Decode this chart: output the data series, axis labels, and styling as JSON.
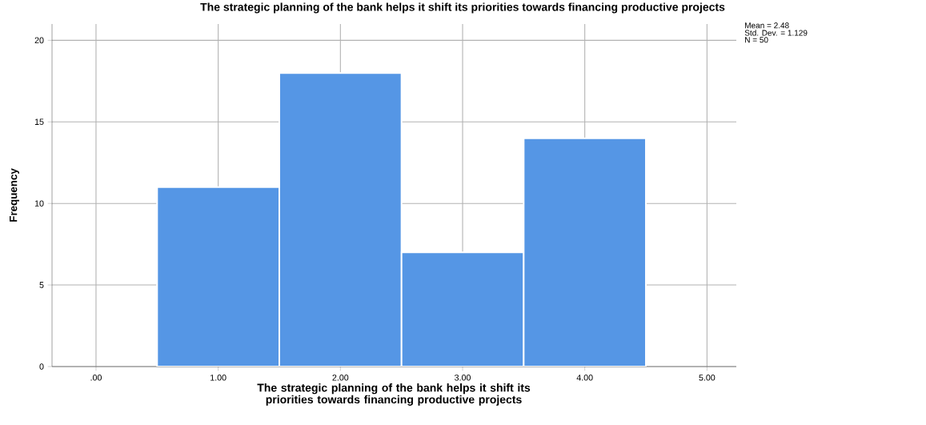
{
  "chart_data": {
    "type": "histogram",
    "title": "The strategic planning of the bank helps it shift its priorities towards financing productive projects",
    "xlabel": "The strategic planning of the bank helps it shift its priorities towards financing productive projects",
    "ylabel": "Frequency",
    "annotations": [
      "Mean = 2.48",
      "Std. Dev. = 1.129",
      "N = 50"
    ],
    "bins": [
      0.5,
      1.5,
      2.5,
      3.5,
      4.5
    ],
    "values": [
      11,
      18,
      7,
      14
    ],
    "color": "#5596e5",
    "xlim": [
      -0.36,
      5.24
    ],
    "ylim": [
      0,
      21
    ],
    "xticks": [
      {
        "value": 0,
        "label": ".00"
      },
      {
        "value": 1,
        "label": "1.00"
      },
      {
        "value": 2,
        "label": "2.00"
      },
      {
        "value": 3,
        "label": "3.00"
      },
      {
        "value": 4,
        "label": "4.00"
      },
      {
        "value": 5,
        "label": "5.00"
      }
    ],
    "yticks": [
      0,
      5,
      10,
      15,
      20
    ],
    "grid": true
  }
}
